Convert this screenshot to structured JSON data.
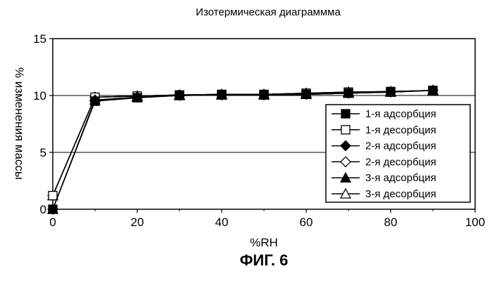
{
  "figure_caption": "ФИГ. 6",
  "chart_data": {
    "type": "line",
    "title": "Изотермическая диаграммма",
    "xlabel": "%RH",
    "ylabel": "% изменения массы",
    "xlim": [
      0,
      100
    ],
    "ylim": [
      0,
      15
    ],
    "xticks": [
      "0",
      "20",
      "40",
      "60",
      "80",
      "100"
    ],
    "yticks": [
      "0",
      "5",
      "10",
      "15"
    ],
    "grid": "horizontal",
    "legend_position": "right",
    "series": [
      {
        "name": "1-я адсорбция",
        "marker": "square-filled",
        "x": [
          0,
          10,
          20,
          30,
          40,
          50,
          60,
          70,
          80,
          90
        ],
        "y": [
          0.0,
          9.5,
          9.8,
          10.0,
          10.05,
          10.05,
          10.1,
          10.2,
          10.3,
          10.45
        ]
      },
      {
        "name": "1-я десорбция",
        "marker": "square-open",
        "x": [
          90,
          80,
          70,
          60,
          50,
          40,
          30,
          20,
          10,
          0
        ],
        "y": [
          10.45,
          10.35,
          10.3,
          10.2,
          10.1,
          10.1,
          10.05,
          9.95,
          9.85,
          1.2
        ]
      },
      {
        "name": "2-я адсорбция",
        "marker": "diamond-filled",
        "x": [
          0,
          10,
          20,
          30,
          40,
          50,
          60,
          70,
          80,
          90
        ],
        "y": [
          0.0,
          9.6,
          9.85,
          10.0,
          10.05,
          10.05,
          10.1,
          10.2,
          10.3,
          10.45
        ]
      },
      {
        "name": "2-я десорбция",
        "marker": "diamond-open",
        "x": [
          90,
          80,
          70,
          60,
          50,
          40,
          30,
          20,
          10,
          0
        ],
        "y": [
          10.45,
          10.35,
          10.3,
          10.2,
          10.1,
          10.1,
          10.05,
          9.95,
          9.85,
          1.2
        ]
      },
      {
        "name": "3-я адсорбция",
        "marker": "triangle-filled",
        "x": [
          0,
          10,
          20,
          30,
          40,
          50,
          60,
          70,
          80,
          90
        ],
        "y": [
          0.0,
          9.6,
          9.85,
          10.0,
          10.05,
          10.05,
          10.1,
          10.2,
          10.3,
          10.45
        ]
      },
      {
        "name": "3-я десорбция",
        "marker": "triangle-open",
        "x": [
          90,
          80,
          70,
          60,
          50,
          40,
          30,
          20,
          10,
          0
        ],
        "y": [
          10.45,
          10.35,
          10.3,
          10.2,
          10.1,
          10.1,
          10.05,
          9.95,
          9.85,
          1.2
        ]
      }
    ]
  }
}
